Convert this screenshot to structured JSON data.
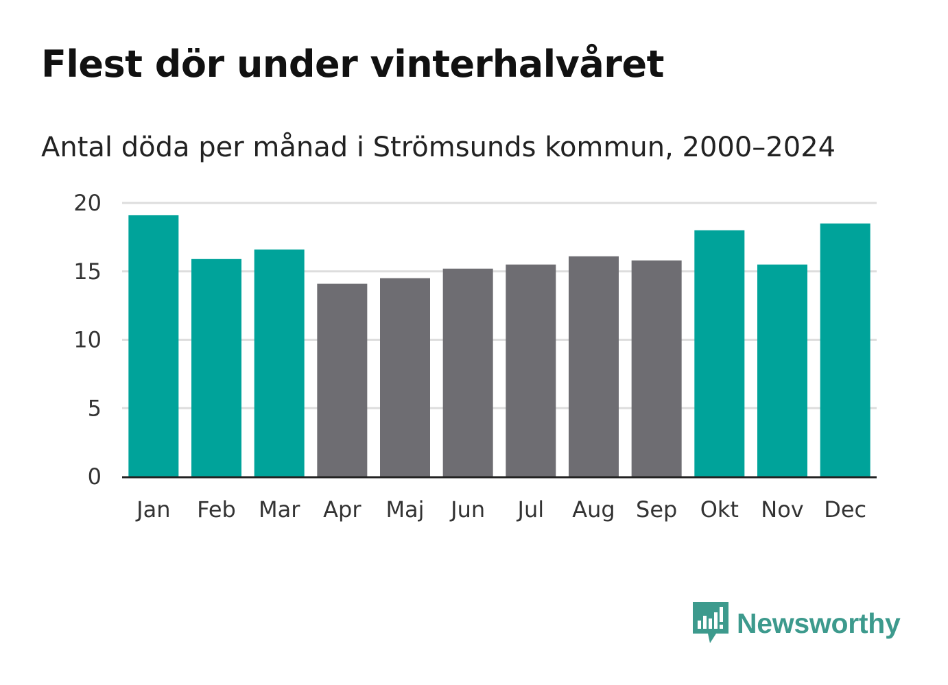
{
  "chart_data": {
    "type": "bar",
    "title": "Flest dör under vinterhalvåret",
    "subtitle": "Antal döda per månad i Strömsunds kommun, 2000–2024",
    "categories": [
      "Jan",
      "Feb",
      "Mar",
      "Apr",
      "Maj",
      "Jun",
      "Jul",
      "Aug",
      "Sep",
      "Okt",
      "Nov",
      "Dec"
    ],
    "values": [
      19.1,
      15.9,
      16.6,
      14.1,
      14.5,
      15.2,
      15.5,
      16.1,
      15.8,
      18.0,
      15.5,
      18.5
    ],
    "highlight": [
      true,
      true,
      true,
      false,
      false,
      false,
      false,
      false,
      false,
      true,
      true,
      true
    ],
    "colors": {
      "highlight": "#00a39a",
      "normal": "#6e6d72",
      "grid": "#dddddd",
      "axis": "#222222"
    },
    "yticks": [
      0,
      5,
      10,
      15,
      20
    ],
    "ylim": [
      0,
      20
    ],
    "xlabel": "",
    "ylabel": "",
    "grid": true
  },
  "branding": {
    "logo_text": "Newsworthy",
    "logo_icon": "newsworthy-bar-chart-icon",
    "logo_color": "#3d9a8d"
  }
}
